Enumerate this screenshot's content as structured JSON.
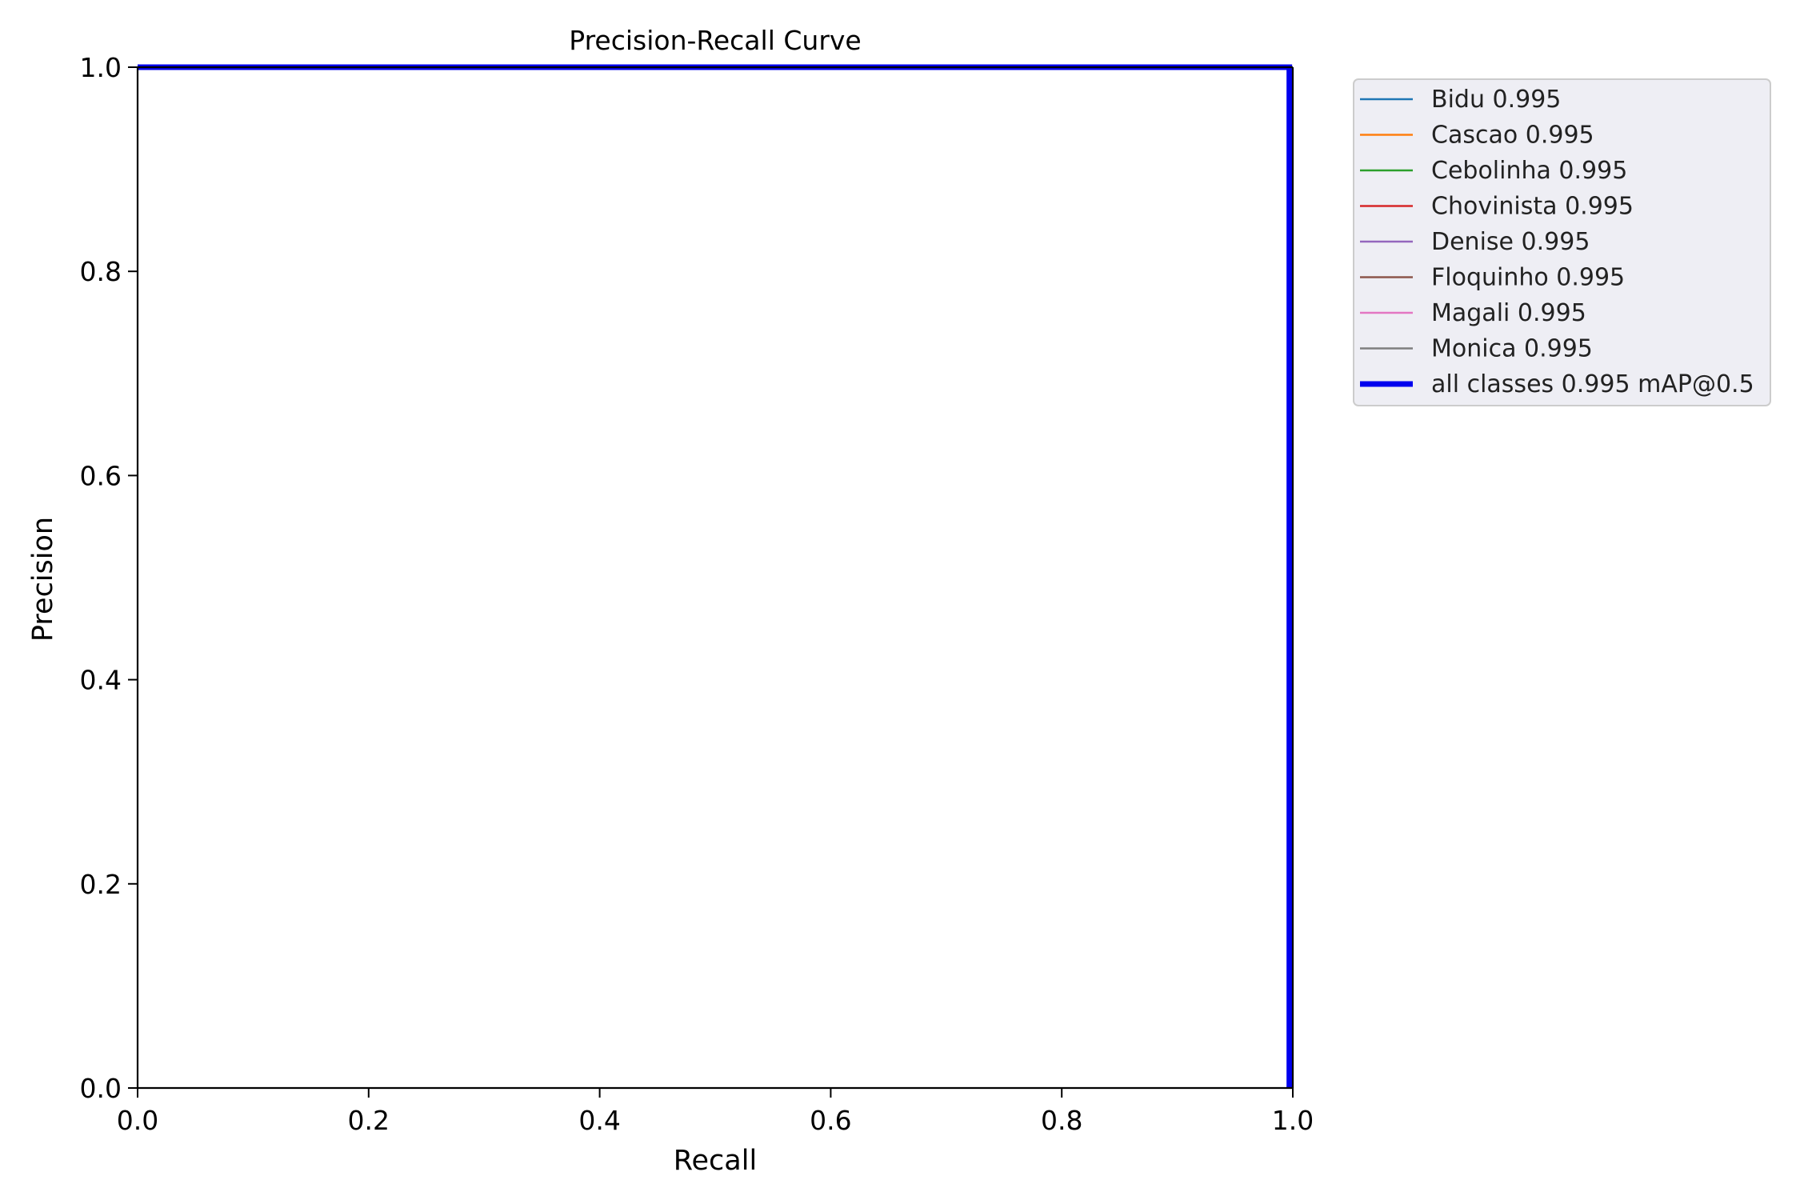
{
  "chart_data": {
    "type": "line",
    "title": "Precision-Recall Curve",
    "xlabel": "Recall",
    "ylabel": "Precision",
    "xlim": [
      0,
      1
    ],
    "ylim": [
      0,
      1
    ],
    "xticks": [
      "0.0",
      "0.2",
      "0.4",
      "0.6",
      "0.8",
      "1.0"
    ],
    "yticks": [
      "0.0",
      "0.2",
      "0.4",
      "0.6",
      "0.8",
      "1.0"
    ],
    "grid": false,
    "legend_position": "outside-top-right",
    "series": [
      {
        "name": "Bidu 0.995",
        "color": "#1f77b4",
        "emphasis": false,
        "x": [
          0,
          0.996,
          0.996
        ],
        "y": [
          1,
          1,
          0
        ]
      },
      {
        "name": "Cascao 0.995",
        "color": "#ff7f0e",
        "emphasis": false,
        "x": [
          0,
          0.996,
          0.996
        ],
        "y": [
          1,
          1,
          0
        ]
      },
      {
        "name": "Cebolinha 0.995",
        "color": "#2ca02c",
        "emphasis": false,
        "x": [
          0,
          0.996,
          0.996
        ],
        "y": [
          1,
          1,
          0
        ]
      },
      {
        "name": "Chovinista 0.995",
        "color": "#d62728",
        "emphasis": false,
        "x": [
          0,
          0.996,
          0.996
        ],
        "y": [
          1,
          1,
          0
        ]
      },
      {
        "name": "Denise 0.995",
        "color": "#9467bd",
        "emphasis": false,
        "x": [
          0,
          0.996,
          0.996
        ],
        "y": [
          1,
          1,
          0
        ]
      },
      {
        "name": "Floquinho 0.995",
        "color": "#8c564b",
        "emphasis": false,
        "x": [
          0,
          0.996,
          0.996
        ],
        "y": [
          1,
          1,
          0
        ]
      },
      {
        "name": "Magali 0.995",
        "color": "#e377c2",
        "emphasis": false,
        "x": [
          0,
          0.996,
          0.996
        ],
        "y": [
          1,
          1,
          0
        ]
      },
      {
        "name": "Monica 0.995",
        "color": "#7f7f7f",
        "emphasis": false,
        "x": [
          0,
          0.996,
          0.996
        ],
        "y": [
          1,
          1,
          0
        ]
      },
      {
        "name": "all classes 0.995 mAP@0.5",
        "color": "#0000ee",
        "emphasis": true,
        "x": [
          0,
          0.997,
          0.997
        ],
        "y": [
          1,
          1,
          0
        ]
      }
    ]
  }
}
